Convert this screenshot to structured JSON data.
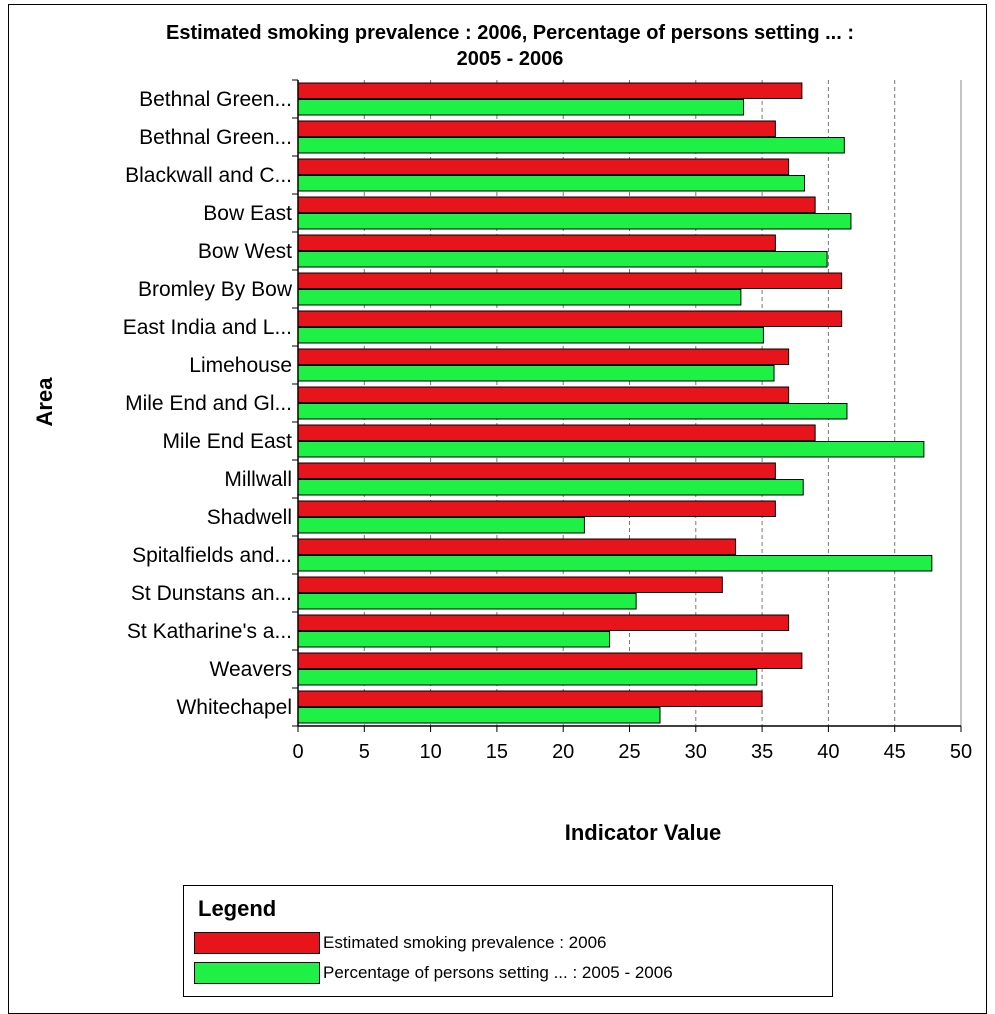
{
  "chart_data": {
    "type": "bar",
    "orientation": "horizontal",
    "title": "Estimated smoking prevalence : 2006, Percentage of persons setting ... : 2005 - 2006",
    "title_lines": [
      "Estimated smoking prevalence : 2006, Percentage of persons setting ... :",
      "2005 - 2006"
    ],
    "xlabel": "Indicator Value",
    "ylabel": "Area",
    "xlim": [
      0,
      50
    ],
    "xticks": [
      0,
      5,
      10,
      15,
      20,
      25,
      30,
      35,
      40,
      45,
      50
    ],
    "grid": "vertical dashed",
    "categories": [
      "Bethnal Green...",
      "Bethnal Green...",
      "Blackwall and C...",
      "Bow East",
      "Bow West",
      "Bromley  By Bow",
      "East India and L...",
      "Limehouse",
      "Mile End and Gl...",
      "Mile End East",
      "Millwall",
      "Shadwell",
      "Spitalfields and...",
      "St Dunstans an...",
      "St Katharine's a...",
      "Weavers",
      "Whitechapel"
    ],
    "series": [
      {
        "name": "Estimated smoking prevalence : 2006",
        "color": "#e8141c",
        "values": [
          38,
          36,
          37,
          39,
          36,
          41,
          41,
          37,
          37,
          39,
          36,
          36,
          33,
          32,
          37,
          38,
          35
        ]
      },
      {
        "name": "Percentage of persons setting ... : 2005 - 2006",
        "color": "#1ef046",
        "values": [
          33.6,
          41.2,
          38.2,
          41.7,
          39.9,
          33.4,
          35.1,
          35.9,
          41.4,
          47.2,
          38.1,
          21.6,
          47.8,
          25.5,
          23.5,
          34.6,
          27.3
        ]
      }
    ],
    "legend": {
      "title": "Legend",
      "placement": "bottom"
    }
  }
}
